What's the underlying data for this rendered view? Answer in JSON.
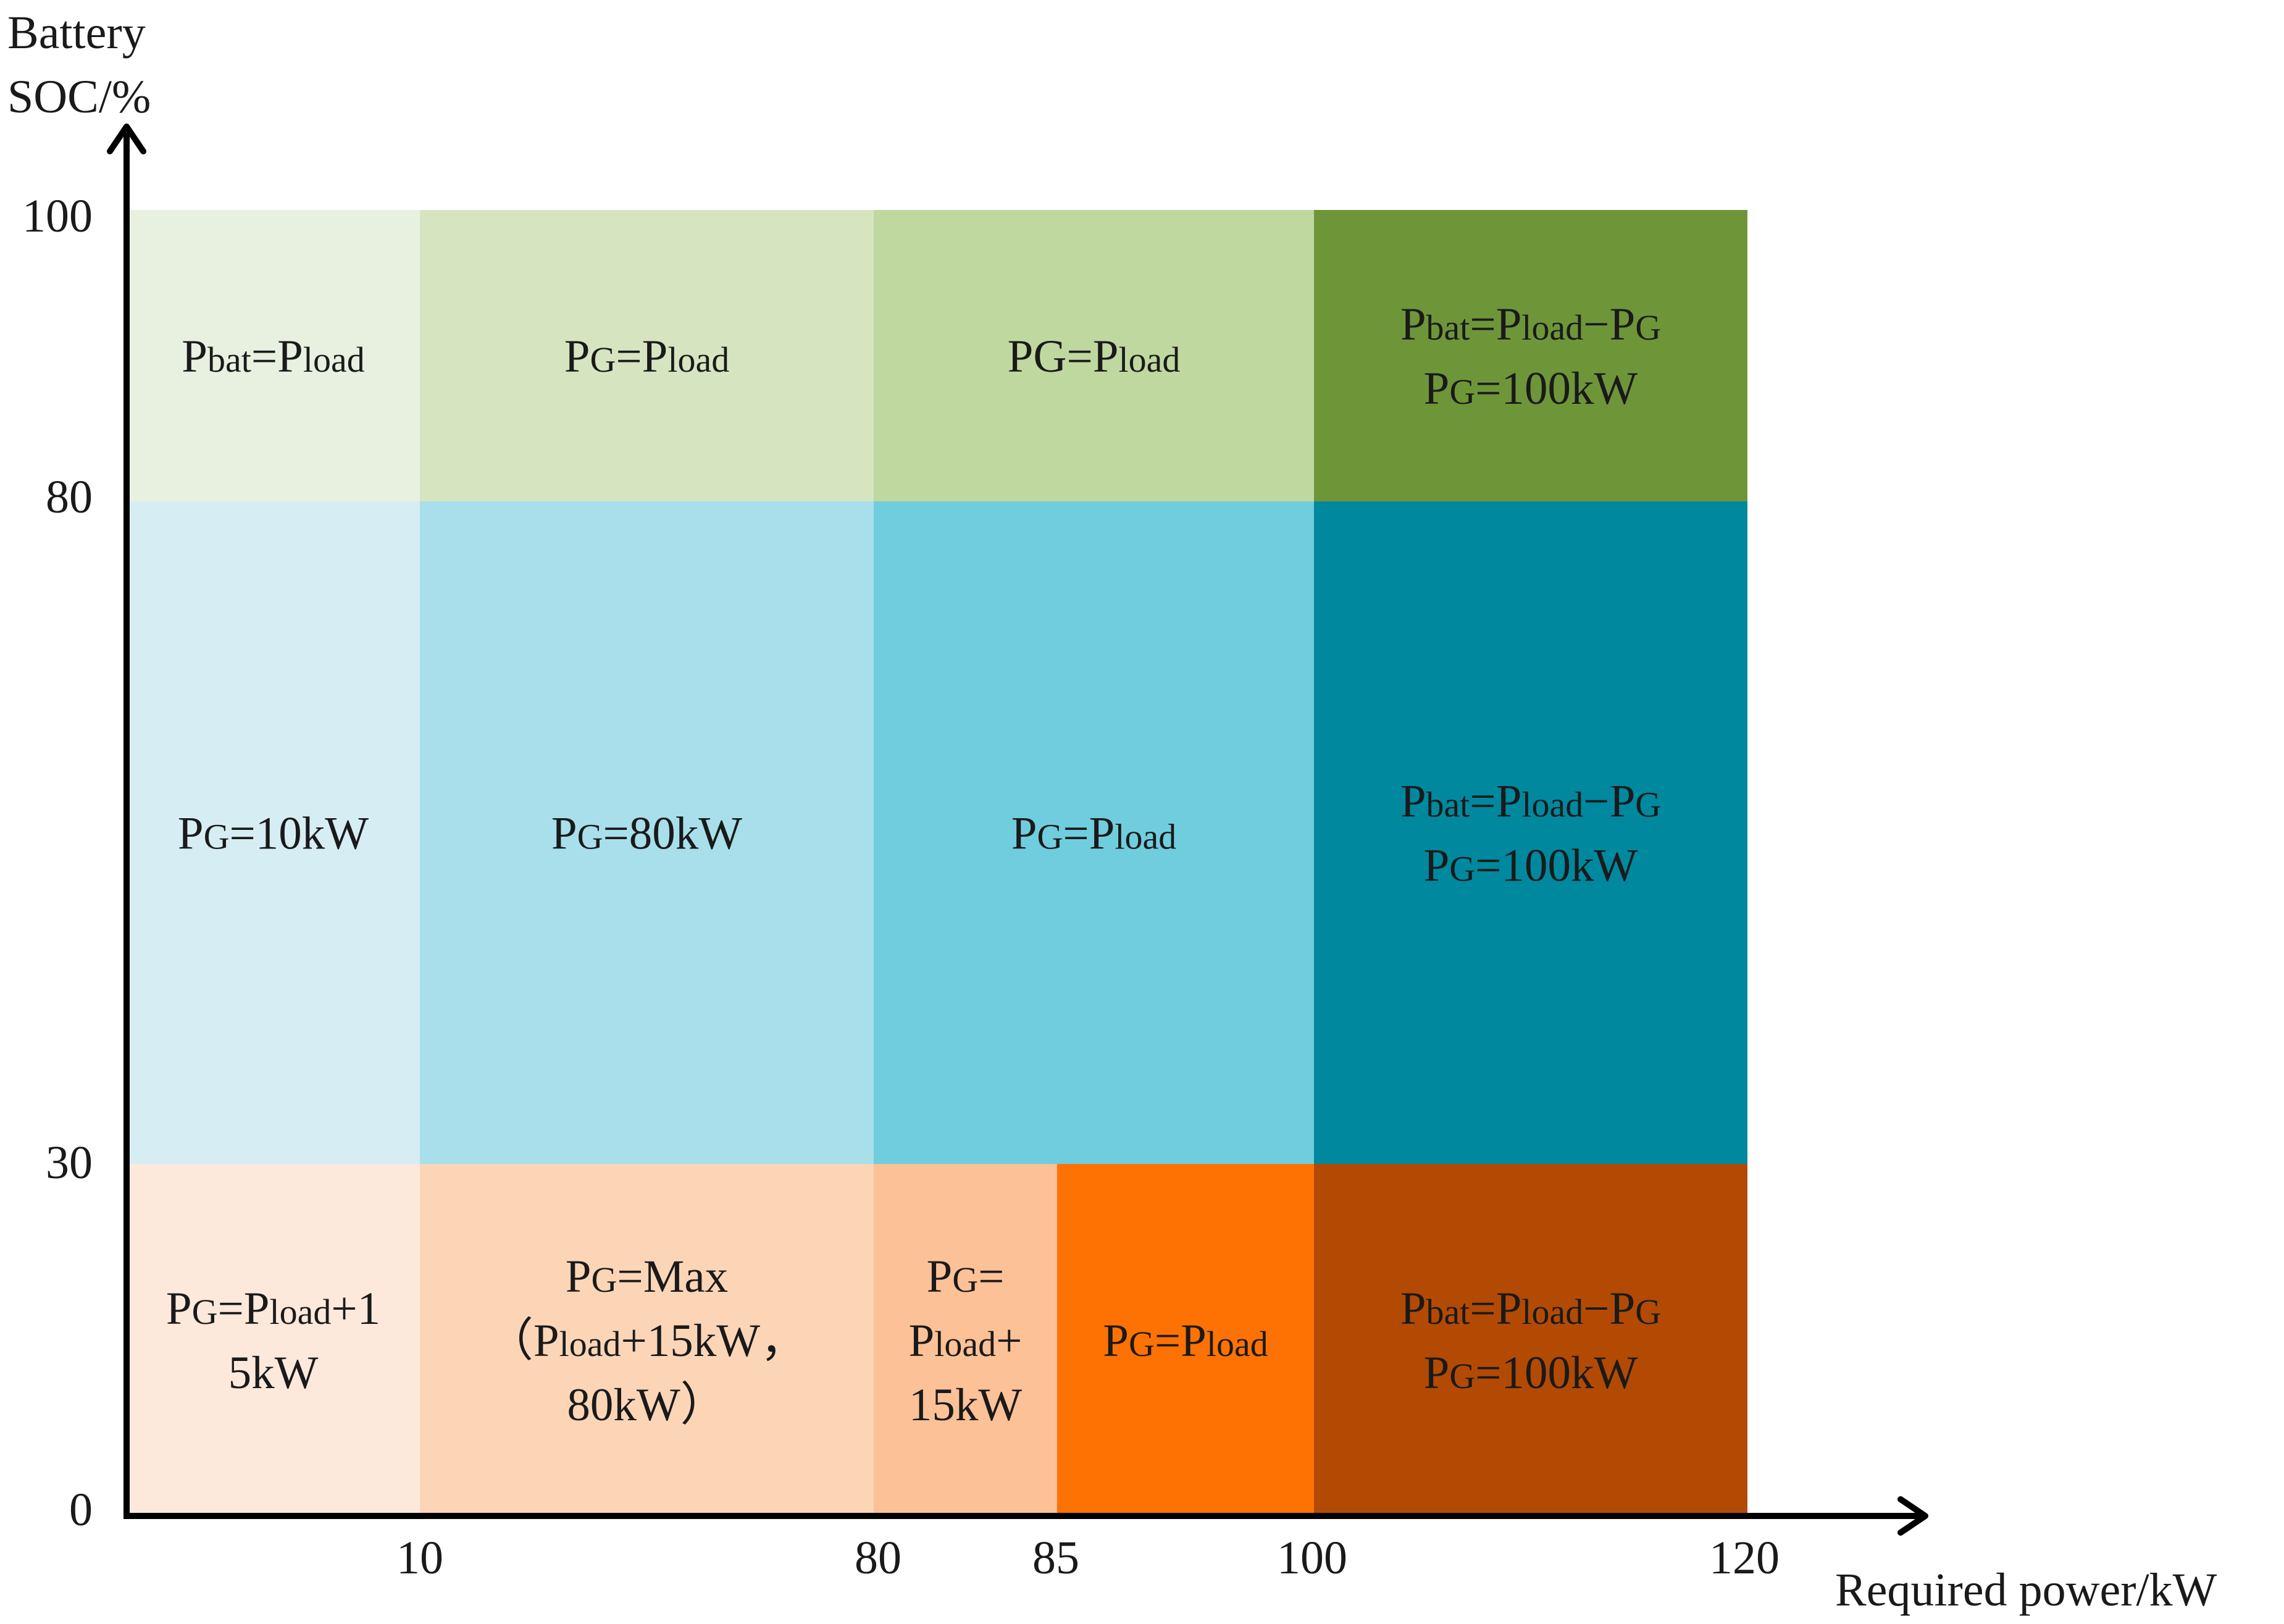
{
  "axes": {
    "y_title_line1": "Battery",
    "y_title_line2": "SOC/%",
    "x_title": "Required power/kW",
    "y_ticks": [
      "100",
      "80",
      "30",
      "0"
    ],
    "x_ticks": [
      "10",
      "80",
      "85",
      "100",
      "120"
    ]
  },
  "regions": [
    {
      "row": "high",
      "x_from": 0,
      "x_to": 10,
      "soc_from": 80,
      "soc_to": 100,
      "color": "#e8f1df",
      "lines": [
        [
          {
            "t": "P"
          },
          {
            "t": "bat",
            "sub": true
          },
          {
            "t": "=P"
          },
          {
            "t": "load",
            "sub": true
          }
        ]
      ]
    },
    {
      "row": "high",
      "x_from": 10,
      "x_to": 80,
      "soc_from": 80,
      "soc_to": 100,
      "color": "#d6e5bf",
      "lines": [
        [
          {
            "t": "P"
          },
          {
            "t": "G",
            "sub": true
          },
          {
            "t": "=P"
          },
          {
            "t": "load",
            "sub": true
          }
        ]
      ]
    },
    {
      "row": "high",
      "x_from": 80,
      "x_to": 100,
      "soc_from": 80,
      "soc_to": 100,
      "color": "#bfd89f",
      "lines": [
        [
          {
            "t": "PG=P"
          },
          {
            "t": "load",
            "sub": true
          }
        ]
      ]
    },
    {
      "row": "high",
      "x_from": 100,
      "x_to": 120,
      "soc_from": 80,
      "soc_to": 100,
      "color": "#6e9639",
      "lines": [
        [
          {
            "t": "P"
          },
          {
            "t": "bat",
            "sub": true
          },
          {
            "t": "=P"
          },
          {
            "t": "load",
            "sub": true
          },
          {
            "t": "−P"
          },
          {
            "t": "G",
            "sub": true
          }
        ],
        [
          {
            "t": "P"
          },
          {
            "t": "G",
            "sub": true
          },
          {
            "t": "=100kW"
          }
        ]
      ]
    },
    {
      "row": "mid",
      "x_from": 0,
      "x_to": 10,
      "soc_from": 30,
      "soc_to": 80,
      "color": "#d6edf3",
      "lines": [
        [
          {
            "t": "P"
          },
          {
            "t": "G",
            "sub": true
          },
          {
            "t": "=10kW"
          }
        ]
      ]
    },
    {
      "row": "mid",
      "x_from": 10,
      "x_to": 80,
      "soc_from": 30,
      "soc_to": 80,
      "color": "#a8dfea",
      "lines": [
        [
          {
            "t": "P"
          },
          {
            "t": "G",
            "sub": true
          },
          {
            "t": "=80kW"
          }
        ]
      ]
    },
    {
      "row": "mid",
      "x_from": 80,
      "x_to": 100,
      "soc_from": 30,
      "soc_to": 80,
      "color": "#70cdde",
      "lines": [
        [
          {
            "t": "P"
          },
          {
            "t": "G",
            "sub": true
          },
          {
            "t": "=P"
          },
          {
            "t": "load",
            "sub": true
          }
        ]
      ]
    },
    {
      "row": "mid",
      "x_from": 100,
      "x_to": 120,
      "soc_from": 30,
      "soc_to": 80,
      "color": "#00889e",
      "lines": [
        [
          {
            "t": "P"
          },
          {
            "t": "bat",
            "sub": true
          },
          {
            "t": "=P"
          },
          {
            "t": "load",
            "sub": true
          },
          {
            "t": "−P"
          },
          {
            "t": "G",
            "sub": true
          }
        ],
        [
          {
            "t": "P"
          },
          {
            "t": "G",
            "sub": true
          },
          {
            "t": "=100kW"
          }
        ]
      ]
    },
    {
      "row": "low",
      "x_from": 0,
      "x_to": 10,
      "soc_from": 0,
      "soc_to": 30,
      "color": "#fde9dc",
      "lines": [
        [
          {
            "t": "P"
          },
          {
            "t": "G",
            "sub": true
          },
          {
            "t": "=P"
          },
          {
            "t": "load",
            "sub": true
          },
          {
            "t": "+1"
          }
        ],
        [
          {
            "t": "5kW"
          }
        ]
      ]
    },
    {
      "row": "low",
      "x_from": 10,
      "x_to": 80,
      "soc_from": 0,
      "soc_to": 30,
      "color": "#fcd5b7",
      "lines": [
        [
          {
            "t": "P"
          },
          {
            "t": "G",
            "sub": true
          },
          {
            "t": "=Max"
          }
        ],
        [
          {
            "t": "（P"
          },
          {
            "t": "load",
            "sub": true
          },
          {
            "t": "+15kW，"
          }
        ],
        [
          {
            "t": "80kW）"
          }
        ]
      ]
    },
    {
      "row": "low",
      "x_from": 80,
      "x_to": 85,
      "soc_from": 0,
      "soc_to": 30,
      "color": "#fcc196",
      "lines": [
        [
          {
            "t": "P"
          },
          {
            "t": "G",
            "sub": true
          },
          {
            "t": "="
          }
        ],
        [
          {
            "t": "P"
          },
          {
            "t": "load",
            "sub": true
          },
          {
            "t": "+"
          }
        ],
        [
          {
            "t": "15kW"
          }
        ]
      ]
    },
    {
      "row": "low",
      "x_from": 85,
      "x_to": 100,
      "soc_from": 0,
      "soc_to": 30,
      "color": "#fe7203",
      "lines": [
        [
          {
            "t": "P"
          },
          {
            "t": "G",
            "sub": true
          },
          {
            "t": "=P"
          },
          {
            "t": "load",
            "sub": true
          }
        ]
      ]
    },
    {
      "row": "low",
      "x_from": 100,
      "x_to": 120,
      "soc_from": 0,
      "soc_to": 30,
      "color": "#b34a03",
      "lines": [
        [
          {
            "t": "P"
          },
          {
            "t": "bat",
            "sub": true
          },
          {
            "t": "=P"
          },
          {
            "t": "load",
            "sub": true
          },
          {
            "t": "−P"
          },
          {
            "t": "G",
            "sub": true
          }
        ],
        [
          {
            "t": "P"
          },
          {
            "t": "G",
            "sub": true
          },
          {
            "t": "=100kW"
          }
        ]
      ]
    }
  ]
}
